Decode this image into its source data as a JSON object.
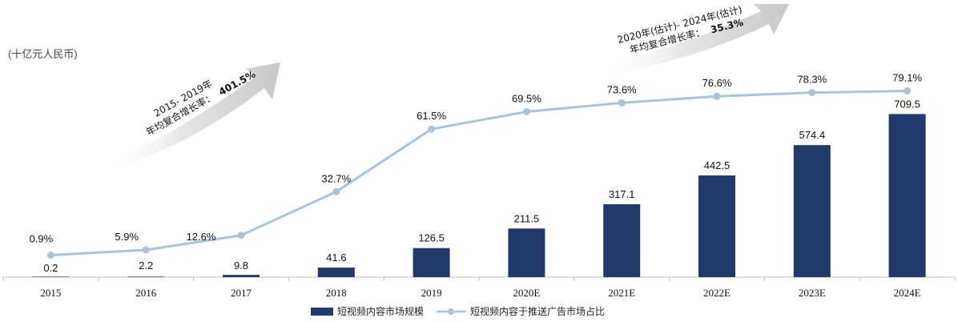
{
  "unit_label": "(十亿元人民币)",
  "annotations": {
    "left": {
      "line1": "2015- 2019年",
      "line2_prefix": "年均复合增长率：",
      "line2_value": "401.5%"
    },
    "right": {
      "line1": "2020年(估计)- 2024年(估计)",
      "line2_prefix": "年均复合增长率：",
      "line2_value": "35.3%"
    }
  },
  "colors": {
    "bar": "#1f3a6b",
    "line": "#a9c4d8",
    "marker": "#a9c4d8",
    "arrow": "#d9d9d9",
    "axis": "#bfbfbf"
  },
  "chart_data": {
    "type": "bar",
    "categories": [
      "2015",
      "2016",
      "2017",
      "2018",
      "2019",
      "2020E",
      "2021E",
      "2022E",
      "2023E",
      "2024E"
    ],
    "series": [
      {
        "name": "短视频内容市场规模",
        "type": "bar",
        "values": [
          0.2,
          2.2,
          9.8,
          41.6,
          126.5,
          211.5,
          317.1,
          442.5,
          574.4,
          709.5
        ],
        "labels": [
          "0.2",
          "2.2",
          "9.8",
          "41.6",
          "126.5",
          "211.5",
          "317.1",
          "442.5",
          "574.4",
          "709.5"
        ]
      },
      {
        "name": "短视频内容于推送广告市场占比",
        "type": "line",
        "values": [
          0.9,
          5.9,
          12.6,
          32.7,
          61.5,
          69.5,
          73.6,
          76.6,
          78.3,
          79.1
        ],
        "labels": [
          "0.9%",
          "5.9%",
          "12.6%",
          "32.7%",
          "61.5%",
          "69.5%",
          "73.6%",
          "76.6%",
          "78.3%",
          "79.1%"
        ]
      }
    ],
    "legend_position": "bottom",
    "grid": false
  }
}
